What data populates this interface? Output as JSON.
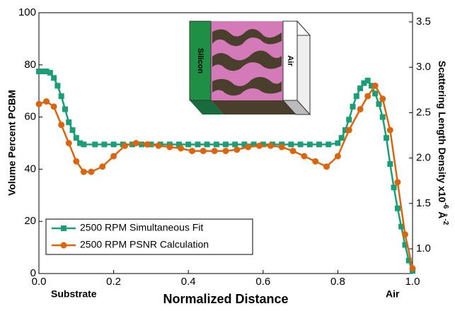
{
  "chart_data": {
    "type": "line",
    "x_label": "Normalized Distance",
    "y_label": "Volume Percent PCBM",
    "y2_label": [
      "Scattering Length Density x10",
      "-6",
      " Å",
      "-2"
    ],
    "xlim": [
      0,
      1
    ],
    "ylim": [
      0,
      100
    ],
    "y2lim": [
      0.728,
      3.601
    ],
    "xticks": [
      {
        "value": 0,
        "label": "0.0"
      },
      0.2,
      0.4,
      0.6,
      0.8,
      {
        "value": 1,
        "label": "1.0"
      }
    ],
    "yticks": [
      0,
      20,
      40,
      60,
      80,
      100
    ],
    "y2ticks": [
      {
        "value": 1,
        "label": "1.0"
      },
      1.5,
      {
        "value": 2,
        "label": "2.0"
      },
      2.5,
      {
        "value": 3,
        "label": "3.0"
      },
      3.5
    ],
    "annotations": [
      "Substrate",
      "Air",
      "Silicon",
      "Air"
    ],
    "legend": "lower left",
    "series": [
      {
        "name": "2500 RPM Simultaneous Fit",
        "color": "#1b9e77",
        "marker": "square",
        "x": [
          0,
          0.01,
          0.02,
          0.03,
          0.04,
          0.05,
          0.06,
          0.07,
          0.08,
          0.09,
          0.1,
          0.11,
          0.12,
          0.15,
          0.175,
          0.2,
          0.225,
          0.25,
          0.275,
          0.3,
          0.325,
          0.35,
          0.375,
          0.4,
          0.425,
          0.45,
          0.475,
          0.5,
          0.525,
          0.55,
          0.575,
          0.6,
          0.625,
          0.65,
          0.675,
          0.7,
          0.725,
          0.75,
          0.775,
          0.8,
          0.81,
          0.82,
          0.83,
          0.84,
          0.85,
          0.86,
          0.87,
          0.88,
          0.89,
          0.9,
          0.91,
          0.92,
          0.93,
          0.94,
          0.95,
          0.96,
          0.97,
          0.98,
          0.99,
          1
        ],
        "values": [
          77.5,
          77.5,
          77.5,
          77,
          75,
          72,
          68,
          63,
          58,
          55,
          52,
          50,
          49.5,
          49.5,
          49.5,
          49.5,
          49.5,
          49.5,
          49.5,
          49.5,
          49.5,
          49.5,
          49.5,
          49.5,
          49.5,
          49.5,
          49.5,
          49.5,
          49.5,
          49.5,
          49.5,
          49.5,
          49.5,
          49.5,
          49.5,
          49.5,
          49.5,
          49.5,
          49.5,
          50,
          52,
          55,
          59,
          64,
          68,
          71,
          73,
          74,
          72,
          69,
          65,
          60,
          52,
          42,
          33,
          25,
          18,
          11,
          5,
          1
        ]
      },
      {
        "name": "2500 RPM PSNR Calculation",
        "color": "#d9650f",
        "marker": "circle",
        "x": [
          0,
          0.02,
          0.04,
          0.06,
          0.08,
          0.1,
          0.12,
          0.14,
          0.17,
          0.2,
          0.23,
          0.26,
          0.29,
          0.32,
          0.35,
          0.38,
          0.41,
          0.44,
          0.47,
          0.5,
          0.53,
          0.56,
          0.59,
          0.62,
          0.65,
          0.68,
          0.71,
          0.74,
          0.77,
          0.8,
          0.83,
          0.86,
          0.88,
          0.9,
          0.92,
          0.94,
          0.96,
          0.98,
          1
        ],
        "values": [
          65,
          66,
          64,
          57,
          50,
          43,
          39,
          39,
          41,
          45,
          49,
          50,
          49.5,
          49,
          48.5,
          48,
          47,
          47,
          47,
          47,
          47.5,
          48.5,
          49,
          49,
          48.5,
          47,
          45,
          43,
          41,
          45,
          55,
          63,
          68,
          72,
          67,
          55,
          35,
          15,
          2
        ]
      }
    ]
  }
}
